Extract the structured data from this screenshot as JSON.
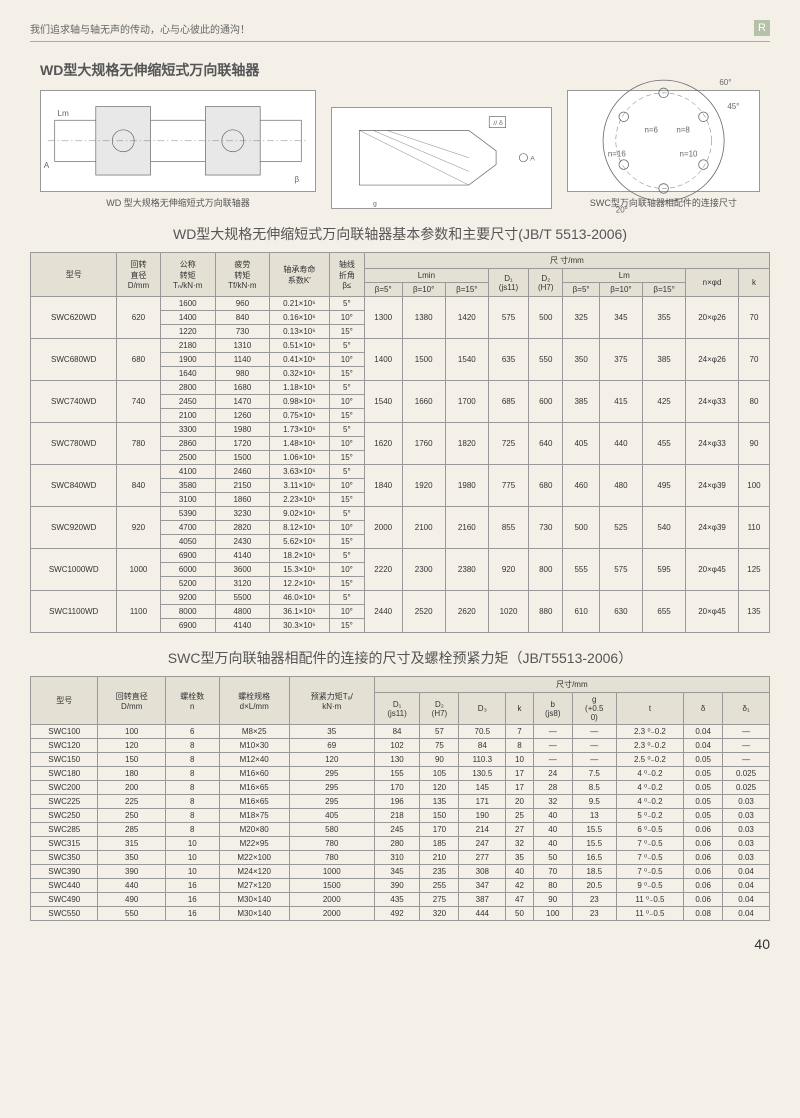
{
  "tagline": "我们追求轴与轴无声的传动，心与心彼此的通沟！",
  "section_title": "WD型大规格无伸缩短式万向联轴器",
  "diagram_captions": [
    "WD 型大规格无伸缩短式万向联轴器",
    "SWC型万向联轴器相配件的连接尺寸"
  ],
  "table1_title": "WD型大规格无伸缩短式万向联轴器基本参数和主要尺寸(JB/T 5513-2006)",
  "table1_headers": {
    "type": "型号",
    "dia": "回转\n直径\nD/mm",
    "nominal": "公称\n转矩\nTₙ/kN·m",
    "fatigue": "疲劳\n转矩\nTf/kN·m",
    "life": "轴承寿命\n系数K′",
    "angle": "轴线\n折角\nβ≤",
    "dims": "尺 寸/mm",
    "lmin": "Lmin",
    "d1": "D₁\n(js11)",
    "d2": "D₂\n(H7)",
    "lm": "Lm",
    "nxd": "n×φd",
    "k": "k",
    "b5": "β=5°",
    "b10": "β=10°",
    "b15": "β=15°"
  },
  "table1_rows": [
    {
      "t": "SWC620WD",
      "d": "620",
      "sub": [
        [
          "1600",
          "960",
          "0.21×10⁶",
          "5°"
        ],
        [
          "1400",
          "840",
          "0.16×10⁶",
          "10°"
        ],
        [
          "1220",
          "730",
          "0.13×10⁶",
          "15°"
        ]
      ],
      "l": [
        "1300",
        "1380",
        "1420"
      ],
      "d1": "575",
      "d2": "500",
      "lm": [
        "325",
        "345",
        "355"
      ],
      "n": "20×φ26",
      "k": "70"
    },
    {
      "t": "SWC680WD",
      "d": "680",
      "sub": [
        [
          "2180",
          "1310",
          "0.51×10⁶",
          "5°"
        ],
        [
          "1900",
          "1140",
          "0.41×10⁶",
          "10°"
        ],
        [
          "1640",
          "980",
          "0.32×10⁶",
          "15°"
        ]
      ],
      "l": [
        "1400",
        "1500",
        "1540"
      ],
      "d1": "635",
      "d2": "550",
      "lm": [
        "350",
        "375",
        "385"
      ],
      "n": "24×φ26",
      "k": "70"
    },
    {
      "t": "SWC740WD",
      "d": "740",
      "sub": [
        [
          "2800",
          "1680",
          "1.18×10⁶",
          "5°"
        ],
        [
          "2450",
          "1470",
          "0.98×10⁶",
          "10°"
        ],
        [
          "2100",
          "1260",
          "0.75×10⁶",
          "15°"
        ]
      ],
      "l": [
        "1540",
        "1660",
        "1700"
      ],
      "d1": "685",
      "d2": "600",
      "lm": [
        "385",
        "415",
        "425"
      ],
      "n": "24×φ33",
      "k": "80"
    },
    {
      "t": "SWC780WD",
      "d": "780",
      "sub": [
        [
          "3300",
          "1980",
          "1.73×10⁶",
          "5°"
        ],
        [
          "2860",
          "1720",
          "1.48×10⁶",
          "10°"
        ],
        [
          "2500",
          "1500",
          "1.06×10⁶",
          "15°"
        ]
      ],
      "l": [
        "1620",
        "1760",
        "1820"
      ],
      "d1": "725",
      "d2": "640",
      "lm": [
        "405",
        "440",
        "455"
      ],
      "n": "24×φ33",
      "k": "90"
    },
    {
      "t": "SWC840WD",
      "d": "840",
      "sub": [
        [
          "4100",
          "2460",
          "3.63×10⁶",
          "5°"
        ],
        [
          "3580",
          "2150",
          "3.11×10⁶",
          "10°"
        ],
        [
          "3100",
          "1860",
          "2.23×10⁶",
          "15°"
        ]
      ],
      "l": [
        "1840",
        "1920",
        "1980"
      ],
      "d1": "775",
      "d2": "680",
      "lm": [
        "460",
        "480",
        "495"
      ],
      "n": "24×φ39",
      "k": "100"
    },
    {
      "t": "SWC920WD",
      "d": "920",
      "sub": [
        [
          "5390",
          "3230",
          "9.02×10⁶",
          "5°"
        ],
        [
          "4700",
          "2820",
          "8.12×10⁶",
          "10°"
        ],
        [
          "4050",
          "2430",
          "5.62×10⁶",
          "15°"
        ]
      ],
      "l": [
        "2000",
        "2100",
        "2160"
      ],
      "d1": "855",
      "d2": "730",
      "lm": [
        "500",
        "525",
        "540"
      ],
      "n": "24×φ39",
      "k": "110"
    },
    {
      "t": "SWC1000WD",
      "d": "1000",
      "sub": [
        [
          "6900",
          "4140",
          "18.2×10⁶",
          "5°"
        ],
        [
          "6000",
          "3600",
          "15.3×10⁶",
          "10°"
        ],
        [
          "5200",
          "3120",
          "12.2×10⁶",
          "15°"
        ]
      ],
      "l": [
        "2220",
        "2300",
        "2380"
      ],
      "d1": "920",
      "d2": "800",
      "lm": [
        "555",
        "575",
        "595"
      ],
      "n": "20×φ45",
      "k": "125"
    },
    {
      "t": "SWC1100WD",
      "d": "1100",
      "sub": [
        [
          "9200",
          "5500",
          "46.0×10⁶",
          "5°"
        ],
        [
          "8000",
          "4800",
          "36.1×10⁶",
          "10°"
        ],
        [
          "6900",
          "4140",
          "30.3×10⁶",
          "15°"
        ]
      ],
      "l": [
        "2440",
        "2520",
        "2620"
      ],
      "d1": "1020",
      "d2": "880",
      "lm": [
        "610",
        "630",
        "655"
      ],
      "n": "20×φ45",
      "k": "135"
    }
  ],
  "table2_title": "SWC型万向联轴器相配件的连接的尺寸及螺栓预紧力矩（JB/T5513-2006）",
  "table2_headers": {
    "type": "型号",
    "d": "回转直径\nD/mm",
    "n": "螺栓数\nn",
    "spec": "螺栓规格\nd×L/mm",
    "m": "预紧力矩Tₐ/\nkN·m",
    "dims": "尺寸/mm",
    "d1": "D₁\n(js11)",
    "d2": "D₂\n(H7)",
    "d3": "D₃",
    "k": "k",
    "b": "b\n(js8)",
    "g": "g\n(+0.5\n0)",
    "t": "t",
    "del": "δ",
    "del1": "δ₁"
  },
  "table2_rows": [
    [
      "SWC100",
      "100",
      "6",
      "M8×25",
      "35",
      "84",
      "57",
      "70.5",
      "7",
      "—",
      "—",
      "2.3 ⁰₋0.2",
      "0.04",
      "—"
    ],
    [
      "SWC120",
      "120",
      "8",
      "M10×30",
      "69",
      "102",
      "75",
      "84",
      "8",
      "—",
      "—",
      "2.3 ⁰₋0.2",
      "0.04",
      "—"
    ],
    [
      "SWC150",
      "150",
      "8",
      "M12×40",
      "120",
      "130",
      "90",
      "110.3",
      "10",
      "—",
      "—",
      "2.5 ⁰₋0.2",
      "0.05",
      "—"
    ],
    [
      "SWC180",
      "180",
      "8",
      "M16×60",
      "295",
      "155",
      "105",
      "130.5",
      "17",
      "24",
      "7.5",
      "4 ⁰₋0.2",
      "0.05",
      "0.025"
    ],
    [
      "SWC200",
      "200",
      "8",
      "M16×65",
      "295",
      "170",
      "120",
      "145",
      "17",
      "28",
      "8.5",
      "4 ⁰₋0.2",
      "0.05",
      "0.025"
    ],
    [
      "SWC225",
      "225",
      "8",
      "M16×65",
      "295",
      "196",
      "135",
      "171",
      "20",
      "32",
      "9.5",
      "4 ⁰₋0.2",
      "0.05",
      "0.03"
    ],
    [
      "SWC250",
      "250",
      "8",
      "M18×75",
      "405",
      "218",
      "150",
      "190",
      "25",
      "40",
      "13",
      "5 ⁰₋0.2",
      "0.05",
      "0.03"
    ],
    [
      "SWC285",
      "285",
      "8",
      "M20×80",
      "580",
      "245",
      "170",
      "214",
      "27",
      "40",
      "15.5",
      "6 ⁰₋0.5",
      "0.06",
      "0.03"
    ],
    [
      "SWC315",
      "315",
      "10",
      "M22×95",
      "780",
      "280",
      "185",
      "247",
      "32",
      "40",
      "15.5",
      "7 ⁰₋0.5",
      "0.06",
      "0.03"
    ],
    [
      "SWC350",
      "350",
      "10",
      "M22×100",
      "780",
      "310",
      "210",
      "277",
      "35",
      "50",
      "16.5",
      "7 ⁰₋0.5",
      "0.06",
      "0.03"
    ],
    [
      "SWC390",
      "390",
      "10",
      "M24×120",
      "1000",
      "345",
      "235",
      "308",
      "40",
      "70",
      "18.5",
      "7 ⁰₋0.5",
      "0.06",
      "0.04"
    ],
    [
      "SWC440",
      "440",
      "16",
      "M27×120",
      "1500",
      "390",
      "255",
      "347",
      "42",
      "80",
      "20.5",
      "9 ⁰₋0.5",
      "0.06",
      "0.04"
    ],
    [
      "SWC490",
      "490",
      "16",
      "M30×140",
      "2000",
      "435",
      "275",
      "387",
      "47",
      "90",
      "23",
      "11 ⁰₋0.5",
      "0.06",
      "0.04"
    ],
    [
      "SWC550",
      "550",
      "16",
      "M30×140",
      "2000",
      "492",
      "320",
      "444",
      "50",
      "100",
      "23",
      "11 ⁰₋0.5",
      "0.08",
      "0.04"
    ]
  ],
  "page_num": "40"
}
